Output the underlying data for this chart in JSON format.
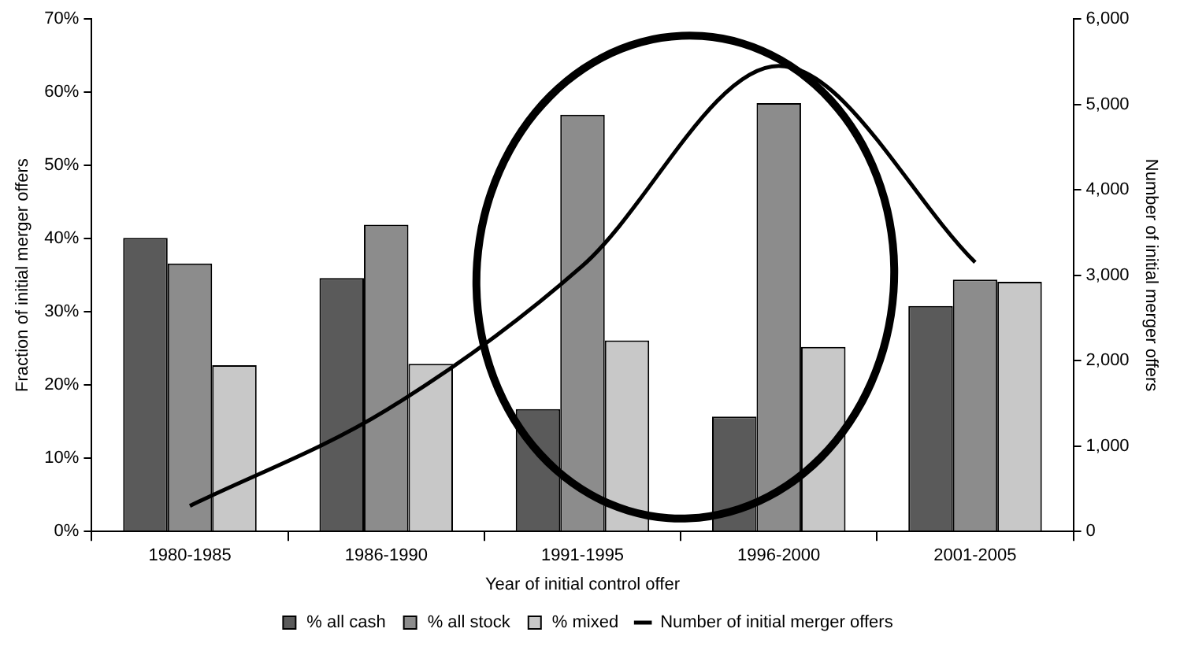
{
  "chart_data": {
    "type": "bar",
    "xlabel": "Year of initial control offer",
    "ylabel": "Fraction of initial merger offers",
    "y2label": "Number of initial merger offers",
    "categories": [
      "1980-1985",
      "1986-1990",
      "1991-1995",
      "1996-2000",
      "2001-2005"
    ],
    "series": [
      {
        "name": "% all cash",
        "color": "#5a5a5a",
        "values": [
          40.1,
          34.6,
          16.7,
          15.7,
          30.8
        ]
      },
      {
        "name": "% all stock",
        "color": "#8c8c8c",
        "values": [
          36.6,
          41.9,
          56.9,
          58.5,
          34.4
        ]
      },
      {
        "name": "% mixed",
        "color": "#c8c8c8",
        "values": [
          22.7,
          22.9,
          26.1,
          25.2,
          34.1
        ]
      },
      {
        "name": "Number of initial merger offers",
        "type": "line",
        "axis": "y2",
        "color": "#000000",
        "values": [
          300,
          1420,
          3110,
          5450,
          3150
        ]
      }
    ],
    "ylim": [
      0,
      70
    ],
    "yticks": [
      {
        "value": 0,
        "label": "0%"
      },
      {
        "value": 10,
        "label": "10%"
      },
      {
        "value": 20,
        "label": "20%"
      },
      {
        "value": 30,
        "label": "30%"
      },
      {
        "value": 40,
        "label": "40%"
      },
      {
        "value": 50,
        "label": "50%"
      },
      {
        "value": 60,
        "label": "60%"
      },
      {
        "value": 70,
        "label": "70%"
      }
    ],
    "y2lim": [
      0,
      6000
    ],
    "y2ticks": [
      0,
      {
        "value": 1000,
        "label": "1,000"
      },
      {
        "value": 2000,
        "label": "2,000"
      },
      {
        "value": 3000,
        "label": "3,000"
      },
      {
        "value": 4000,
        "label": "4,000"
      },
      {
        "value": 5000,
        "label": "5,000"
      },
      {
        "value": 6000,
        "label": "6,000"
      }
    ],
    "grid": false,
    "legend": "bottom",
    "marker": "none",
    "line_style": "solid"
  }
}
